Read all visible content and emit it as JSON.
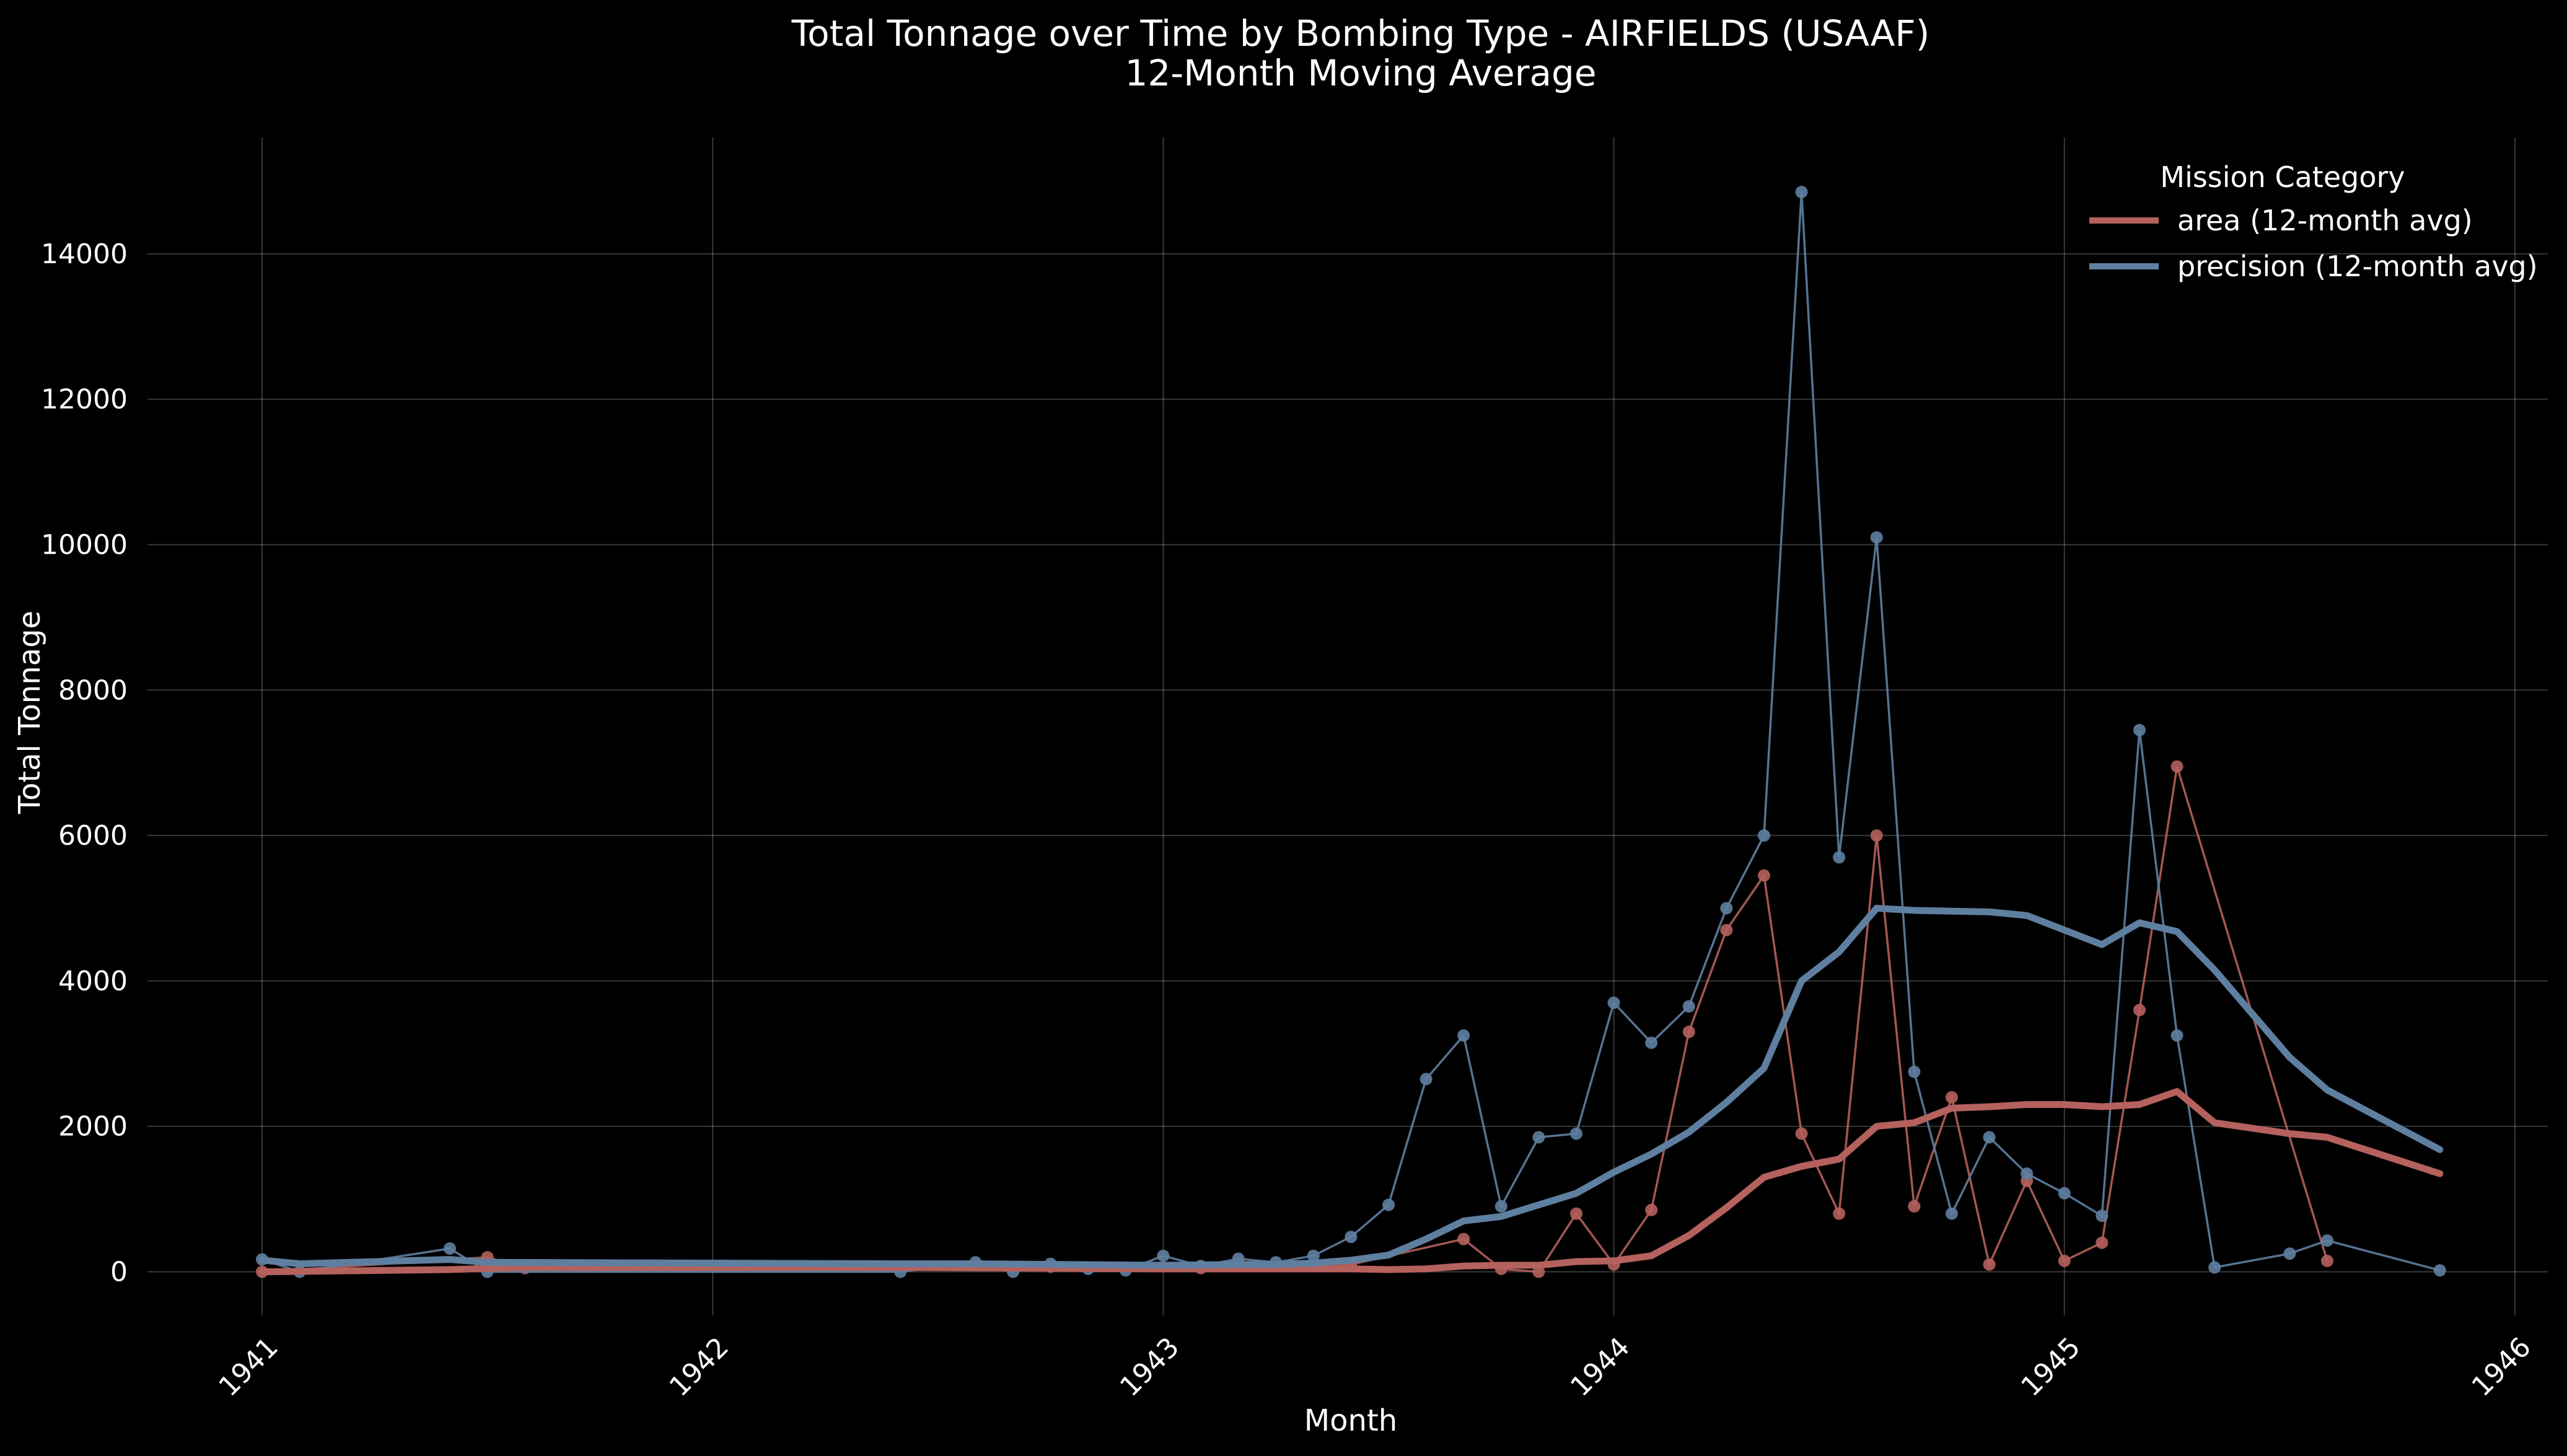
{
  "chart_data": {
    "type": "line",
    "title": "Total Tonnage over Time by Bombing Type - AIRFIELDS  (USAAF)",
    "subtitle": "12-Month Moving Average",
    "xlabel": "Month",
    "ylabel": "Total Tonnage",
    "x_ticks": [
      "1941",
      "1942",
      "1943",
      "1944",
      "1945",
      "1946"
    ],
    "y_ticks": [
      0,
      2000,
      4000,
      6000,
      8000,
      10000,
      12000,
      14000
    ],
    "xlim": [
      "1941-01",
      "1946-01"
    ],
    "ylim": [
      -600,
      15600
    ],
    "grid": true,
    "legend": {
      "title": "Mission Category",
      "position": "top-right",
      "entries": [
        "area (12-month avg)",
        "precision (12-month avg)"
      ]
    },
    "series": [
      {
        "name": "area (12-month avg)",
        "color": "#b5615d",
        "raw": [
          [
            "1941-01",
            0
          ],
          [
            "1941-07",
            200
          ],
          [
            "1941-08",
            50
          ],
          [
            "1942-10",
            70
          ],
          [
            "1943-02",
            50
          ],
          [
            "1943-06",
            100
          ],
          [
            "1943-09",
            450
          ],
          [
            "1943-10",
            40
          ],
          [
            "1943-11",
            0
          ],
          [
            "1943-12",
            800
          ],
          [
            "1944-01",
            100
          ],
          [
            "1944-02",
            850
          ],
          [
            "1944-03",
            3300
          ],
          [
            "1944-04",
            4700
          ],
          [
            "1944-05",
            5450
          ],
          [
            "1944-06",
            1900
          ],
          [
            "1944-07",
            800
          ],
          [
            "1944-08",
            6000
          ],
          [
            "1944-09",
            900
          ],
          [
            "1944-10",
            2400
          ],
          [
            "1944-11",
            100
          ],
          [
            "1944-12",
            1250
          ],
          [
            "1945-01",
            150
          ],
          [
            "1945-02",
            400
          ],
          [
            "1945-03",
            3600
          ],
          [
            "1945-04",
            6950
          ],
          [
            "1945-08",
            150
          ]
        ],
        "avg": [
          [
            "1941-01",
            0
          ],
          [
            "1941-06",
            30
          ],
          [
            "1941-08",
            60
          ],
          [
            "1942-06",
            60
          ],
          [
            "1943-01",
            40
          ],
          [
            "1943-06",
            40
          ],
          [
            "1943-07",
            30
          ],
          [
            "1943-08",
            40
          ],
          [
            "1943-09",
            80
          ],
          [
            "1943-10",
            90
          ],
          [
            "1943-11",
            90
          ],
          [
            "1943-12",
            140
          ],
          [
            "1944-01",
            150
          ],
          [
            "1944-02",
            220
          ],
          [
            "1944-03",
            500
          ],
          [
            "1944-04",
            880
          ],
          [
            "1944-05",
            1300
          ],
          [
            "1944-06",
            1450
          ],
          [
            "1944-07",
            1550
          ],
          [
            "1944-08",
            2000
          ],
          [
            "1944-09",
            2050
          ],
          [
            "1944-10",
            2250
          ],
          [
            "1944-11",
            2270
          ],
          [
            "1944-12",
            2300
          ],
          [
            "1945-01",
            2300
          ],
          [
            "1945-02",
            2270
          ],
          [
            "1945-03",
            2300
          ],
          [
            "1945-04",
            2480
          ],
          [
            "1945-05",
            2050
          ],
          [
            "1945-07",
            1900
          ],
          [
            "1945-08",
            1850
          ],
          [
            "1945-11",
            1350
          ]
        ]
      },
      {
        "name": "precision (12-month avg)",
        "color": "#5f7fa1",
        "raw": [
          [
            "1941-01",
            170
          ],
          [
            "1941-02",
            0
          ],
          [
            "1941-06",
            320
          ],
          [
            "1941-07",
            0
          ],
          [
            "1942-06",
            0
          ],
          [
            "1942-08",
            130
          ],
          [
            "1942-09",
            0
          ],
          [
            "1942-10",
            110
          ],
          [
            "1942-11",
            40
          ],
          [
            "1942-12",
            20
          ],
          [
            "1943-01",
            220
          ],
          [
            "1943-02",
            80
          ],
          [
            "1943-03",
            180
          ],
          [
            "1943-04",
            130
          ],
          [
            "1943-05",
            220
          ],
          [
            "1943-06",
            480
          ],
          [
            "1943-07",
            920
          ],
          [
            "1943-08",
            2650
          ],
          [
            "1943-09",
            3250
          ],
          [
            "1943-10",
            900
          ],
          [
            "1943-11",
            1850
          ],
          [
            "1943-12",
            1900
          ],
          [
            "1944-01",
            3700
          ],
          [
            "1944-02",
            3150
          ],
          [
            "1944-03",
            3650
          ],
          [
            "1944-04",
            5000
          ],
          [
            "1944-05",
            6000
          ],
          [
            "1944-06",
            14850
          ],
          [
            "1944-07",
            5700
          ],
          [
            "1944-08",
            10100
          ],
          [
            "1944-09",
            2750
          ],
          [
            "1944-10",
            800
          ],
          [
            "1944-11",
            1850
          ],
          [
            "1944-12",
            1350
          ],
          [
            "1945-01",
            1080
          ],
          [
            "1945-02",
            770
          ],
          [
            "1945-03",
            7450
          ],
          [
            "1945-04",
            3250
          ],
          [
            "1945-05",
            60
          ],
          [
            "1945-07",
            250
          ],
          [
            "1945-08",
            430
          ],
          [
            "1945-11",
            20
          ]
        ],
        "avg": [
          [
            "1941-01",
            160
          ],
          [
            "1941-02",
            110
          ],
          [
            "1941-06",
            170
          ],
          [
            "1941-07",
            130
          ],
          [
            "1942-06",
            110
          ],
          [
            "1942-08",
            110
          ],
          [
            "1943-01",
            90
          ],
          [
            "1943-03",
            100
          ],
          [
            "1943-04",
            100
          ],
          [
            "1943-05",
            120
          ],
          [
            "1943-06",
            160
          ],
          [
            "1943-07",
            230
          ],
          [
            "1943-08",
            450
          ],
          [
            "1943-09",
            700
          ],
          [
            "1943-10",
            760
          ],
          [
            "1943-11",
            920
          ],
          [
            "1943-12",
            1080
          ],
          [
            "1944-01",
            1370
          ],
          [
            "1944-02",
            1620
          ],
          [
            "1944-03",
            1920
          ],
          [
            "1944-04",
            2330
          ],
          [
            "1944-05",
            2800
          ],
          [
            "1944-06",
            4000
          ],
          [
            "1944-07",
            4400
          ],
          [
            "1944-08",
            5000
          ],
          [
            "1944-09",
            4970
          ],
          [
            "1944-10",
            4960
          ],
          [
            "1944-11",
            4950
          ],
          [
            "1944-12",
            4900
          ],
          [
            "1945-01",
            4700
          ],
          [
            "1945-02",
            4500
          ],
          [
            "1945-03",
            4800
          ],
          [
            "1945-04",
            4680
          ],
          [
            "1945-05",
            4150
          ],
          [
            "1945-07",
            2950
          ],
          [
            "1945-08",
            2500
          ],
          [
            "1945-11",
            1680
          ]
        ]
      }
    ]
  }
}
